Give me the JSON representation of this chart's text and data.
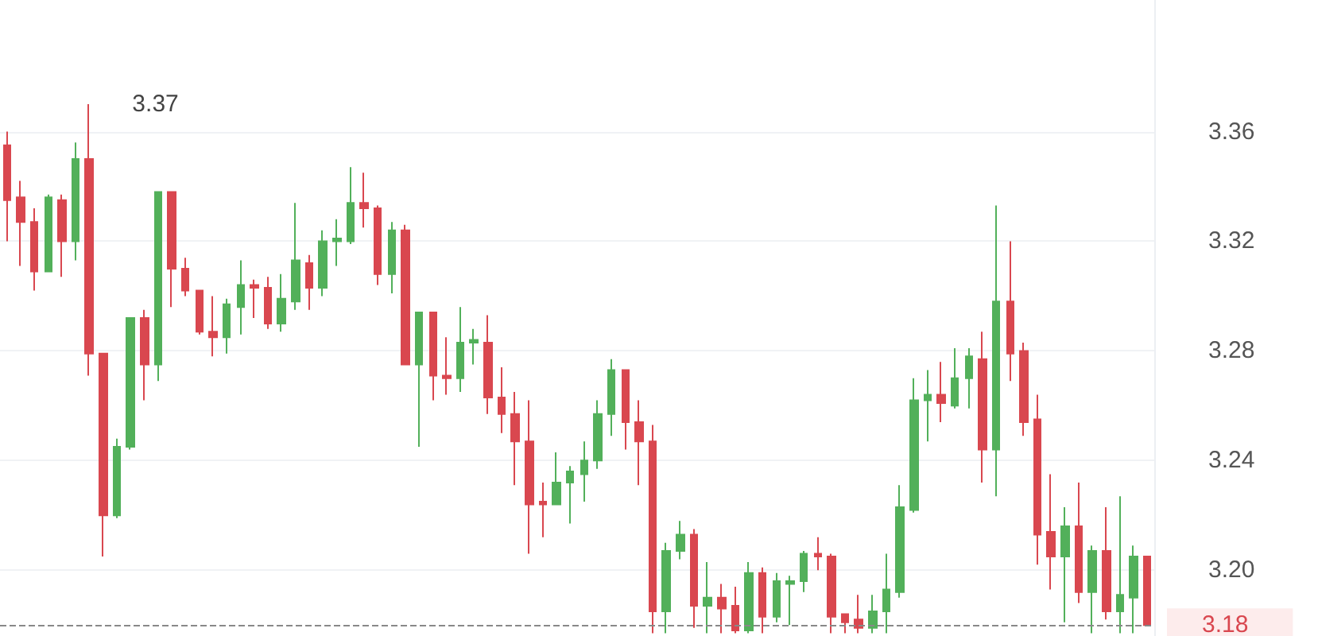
{
  "chart_data": {
    "type": "candlestick",
    "categories": [
      null,
      null,
      null,
      null,
      null,
      null,
      null,
      null,
      null,
      null,
      null,
      null,
      null,
      null,
      null,
      null,
      null,
      null,
      null,
      null,
      null,
      null,
      null,
      null,
      null,
      null,
      null,
      null,
      null,
      null,
      null,
      null,
      null,
      null,
      null,
      null,
      null,
      null,
      null,
      null,
      null,
      null,
      null,
      null,
      null,
      null,
      null,
      null,
      null,
      null,
      null,
      null,
      null,
      null,
      null,
      null,
      null,
      null,
      null,
      null,
      null,
      null,
      null,
      null,
      null,
      null,
      null,
      null,
      null,
      null,
      null,
      null,
      null,
      null,
      null,
      null,
      null,
      null,
      null,
      null,
      null,
      null,
      null,
      null
    ],
    "ohlc": [
      [
        3.355,
        3.36,
        3.32,
        3.335
      ],
      [
        3.336,
        3.342,
        3.311,
        3.327
      ],
      [
        3.327,
        3.332,
        3.302,
        3.309
      ],
      [
        3.309,
        3.337,
        3.309,
        3.336
      ],
      [
        3.335,
        3.337,
        3.307,
        3.32
      ],
      [
        3.32,
        3.356,
        3.313,
        3.35
      ],
      [
        3.35,
        3.37,
        3.271,
        3.279
      ],
      [
        3.279,
        3.279,
        3.205,
        3.22
      ],
      [
        3.22,
        3.248,
        3.219,
        3.245
      ],
      [
        3.245,
        3.292,
        3.244,
        3.292
      ],
      [
        3.292,
        3.295,
        3.262,
        3.275
      ],
      [
        3.275,
        3.338,
        3.269,
        3.338
      ],
      [
        3.338,
        3.338,
        3.296,
        3.31
      ],
      [
        3.31,
        3.314,
        3.3,
        3.302
      ],
      [
        3.302,
        3.302,
        3.286,
        3.287
      ],
      [
        3.287,
        3.3,
        3.278,
        3.285
      ],
      [
        3.285,
        3.299,
        3.279,
        3.297
      ],
      [
        3.296,
        3.313,
        3.286,
        3.304
      ],
      [
        3.304,
        3.306,
        3.292,
        3.303
      ],
      [
        3.303,
        3.307,
        3.288,
        3.29
      ],
      [
        3.29,
        3.308,
        3.287,
        3.299
      ],
      [
        3.298,
        3.334,
        3.295,
        3.313
      ],
      [
        3.312,
        3.315,
        3.295,
        3.303
      ],
      [
        3.303,
        3.324,
        3.3,
        3.32
      ],
      [
        3.32,
        3.328,
        3.311,
        3.321
      ],
      [
        3.32,
        3.347,
        3.319,
        3.334
      ],
      [
        3.334,
        3.345,
        3.325,
        3.332
      ],
      [
        3.332,
        3.333,
        3.304,
        3.308
      ],
      [
        3.308,
        3.327,
        3.301,
        3.324
      ],
      [
        3.324,
        3.326,
        3.275,
        3.275
      ],
      [
        3.275,
        3.294,
        3.245,
        3.294
      ],
      [
        3.294,
        3.294,
        3.262,
        3.271
      ],
      [
        3.271,
        3.285,
        3.264,
        3.27
      ],
      [
        3.27,
        3.296,
        3.265,
        3.283
      ],
      [
        3.283,
        3.288,
        3.275,
        3.284
      ],
      [
        3.283,
        3.293,
        3.257,
        3.263
      ],
      [
        3.263,
        3.274,
        3.25,
        3.257
      ],
      [
        3.257,
        3.265,
        3.231,
        3.247
      ],
      [
        3.247,
        3.262,
        3.206,
        3.224
      ],
      [
        3.225,
        3.232,
        3.212,
        3.224
      ],
      [
        3.224,
        3.243,
        3.224,
        3.232
      ],
      [
        3.232,
        3.238,
        3.217,
        3.236
      ],
      [
        3.235,
        3.247,
        3.225,
        3.24
      ],
      [
        3.24,
        3.262,
        3.237,
        3.257
      ],
      [
        3.257,
        3.277,
        3.249,
        3.273
      ],
      [
        3.273,
        3.273,
        3.244,
        3.254
      ],
      [
        3.254,
        3.262,
        3.231,
        3.247
      ],
      [
        3.247,
        3.253,
        3.177,
        3.185
      ],
      [
        3.185,
        3.21,
        3.177,
        3.207
      ],
      [
        3.207,
        3.218,
        3.204,
        3.213
      ],
      [
        3.213,
        3.215,
        3.179,
        3.187
      ],
      [
        3.187,
        3.203,
        3.177,
        3.19
      ],
      [
        3.19,
        3.195,
        3.177,
        3.186
      ],
      [
        3.187,
        3.194,
        3.177,
        3.178
      ],
      [
        3.178,
        3.203,
        3.177,
        3.199
      ],
      [
        3.199,
        3.201,
        3.177,
        3.183
      ],
      [
        3.183,
        3.199,
        3.181,
        3.196
      ],
      [
        3.195,
        3.198,
        3.18,
        3.196
      ],
      [
        3.196,
        3.207,
        3.192,
        3.206
      ],
      [
        3.206,
        3.212,
        3.2,
        3.205
      ],
      [
        3.205,
        3.206,
        3.177,
        3.183
      ],
      [
        3.184,
        3.184,
        3.177,
        3.181
      ],
      [
        3.182,
        3.191,
        3.177,
        3.179
      ],
      [
        3.179,
        3.191,
        3.177,
        3.185
      ],
      [
        3.185,
        3.206,
        3.177,
        3.193
      ],
      [
        3.192,
        3.231,
        3.19,
        3.223
      ],
      [
        3.222,
        3.27,
        3.221,
        3.262
      ],
      [
        3.262,
        3.273,
        3.247,
        3.264
      ],
      [
        3.264,
        3.276,
        3.254,
        3.261
      ],
      [
        3.26,
        3.281,
        3.259,
        3.27
      ],
      [
        3.27,
        3.281,
        3.259,
        3.278
      ],
      [
        3.277,
        3.287,
        3.232,
        3.244
      ],
      [
        3.244,
        3.333,
        3.227,
        3.298
      ],
      [
        3.298,
        3.32,
        3.269,
        3.279
      ],
      [
        3.28,
        3.283,
        3.249,
        3.254
      ],
      [
        3.255,
        3.264,
        3.202,
        3.213
      ],
      [
        3.214,
        3.235,
        3.193,
        3.205
      ],
      [
        3.205,
        3.223,
        3.181,
        3.216
      ],
      [
        3.216,
        3.232,
        3.188,
        3.192
      ],
      [
        3.192,
        3.209,
        3.177,
        3.207
      ],
      [
        3.207,
        3.223,
        3.182,
        3.185
      ],
      [
        3.185,
        3.227,
        3.177,
        3.191
      ],
      [
        3.19,
        3.209,
        3.177,
        3.205
      ],
      [
        3.205,
        3.205,
        3.18,
        3.18
      ]
    ],
    "colors": [
      "#d9474f",
      "#d9474f",
      "#d9474f",
      "#52b05a",
      "#d9474f",
      "#52b05a",
      "#d9474f",
      "#d9474f",
      "#52b05a",
      "#52b05a",
      "#d9474f",
      "#52b05a",
      "#d9474f",
      "#d9474f",
      "#d9474f",
      "#d9474f",
      "#52b05a",
      "#52b05a",
      "#d9474f",
      "#d9474f",
      "#52b05a",
      "#52b05a",
      "#d9474f",
      "#52b05a",
      "#52b05a",
      "#52b05a",
      "#d9474f",
      "#d9474f",
      "#52b05a",
      "#d9474f",
      "#52b05a",
      "#d9474f",
      "#d9474f",
      "#52b05a",
      "#52b05a",
      "#d9474f",
      "#d9474f",
      "#d9474f",
      "#d9474f",
      "#d9474f",
      "#52b05a",
      "#52b05a",
      "#52b05a",
      "#52b05a",
      "#52b05a",
      "#d9474f",
      "#d9474f",
      "#d9474f",
      "#52b05a",
      "#52b05a",
      "#d9474f",
      "#52b05a",
      "#d9474f",
      "#d9474f",
      "#52b05a",
      "#d9474f",
      "#52b05a",
      "#52b05a",
      "#52b05a",
      "#d9474f",
      "#d9474f",
      "#d9474f",
      "#d9474f",
      "#52b05a",
      "#52b05a",
      "#52b05a",
      "#52b05a",
      "#52b05a",
      "#d9474f",
      "#52b05a",
      "#52b05a",
      "#d9474f",
      "#52b05a",
      "#d9474f",
      "#d9474f",
      "#d9474f",
      "#d9474f",
      "#52b05a",
      "#d9474f",
      "#52b05a",
      "#d9474f",
      "#52b05a",
      "#52b05a",
      "#d9474f"
    ],
    "ylim": [
      3.176,
      3.408
    ],
    "yticks": [
      {
        "value": 3.2,
        "label": "3.20"
      },
      3.24,
      3.28,
      3.32,
      3.36
    ],
    "grid": "y",
    "tick_labels": "y",
    "ref_lines": [
      {
        "axis": "y",
        "value": 3.18,
        "label": "3.18",
        "color": "#888888",
        "line_style": "dashed"
      }
    ],
    "annotations": [
      "3.37"
    ]
  }
}
